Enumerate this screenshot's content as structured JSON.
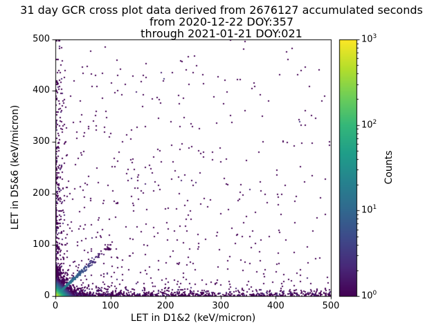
{
  "chart_data": {
    "type": "heatmap",
    "subtype": "2D histogram cross plot rendered as point cloud with log color scale",
    "title": "31 day GCR cross plot data derived from 2676127 accumulated seconds from 2020-12-22 DOY:357 through 2021-01-21 DOY:021",
    "title_lines": [
      "31 day GCR cross plot data derived from 2676127 accumulated seconds",
      "from 2020-12-22 DOY:357",
      "through 2021-01-21 DOY:021"
    ],
    "xlabel": "LET in D1&2 (keV/micron)",
    "ylabel": "LET in D5&6 (keV/micron)",
    "xlim": [
      0,
      500
    ],
    "ylim": [
      0,
      500
    ],
    "xticks": [
      0,
      100,
      200,
      300,
      400,
      500
    ],
    "yticks": [
      0,
      100,
      200,
      300,
      400,
      500
    ],
    "grid": false,
    "legend": "none",
    "colorbar": {
      "label": "Counts",
      "scale": "log",
      "range": [
        1,
        1000
      ],
      "position": "right",
      "ticks": [
        {
          "base": "10",
          "exp": "0"
        },
        {
          "base": "10",
          "exp": "1"
        },
        {
          "base": "10",
          "exp": "2"
        },
        {
          "base": "10",
          "exp": "3"
        }
      ],
      "colormap": "viridis",
      "colormap_stops": [
        "#440154",
        "#482878",
        "#3e4989",
        "#31688e",
        "#26828e",
        "#1f9e89",
        "#35b779",
        "#6ece58",
        "#b5de2b",
        "#fde725"
      ]
    },
    "distribution_summary": "Bright hot spot at the origin (counts approaching 10^3) decaying exponentially; a teal diagonal ridge y~x out to ~90 keV/micron; sparse single-count events hugging both axes out to 500; isolated single-count events scattered over the lower-left half of the plane with a few high outliers near (160,430), (310,420) and (305,375)",
    "render": {
      "seed": 20201222,
      "point_size": 2,
      "clusters": [
        {
          "type": "biexp",
          "n": 5200,
          "mean_x": 7,
          "mean_y": 7,
          "count_scale": 700,
          "count_falloff": 5.5
        },
        {
          "type": "diagonal",
          "n": 750,
          "t_mean": 22,
          "t_max": 95,
          "jitter": 0.12,
          "count_scale": 40,
          "count_falloff": 25
        },
        {
          "type": "xband",
          "n": 950,
          "x_pow": 2.2,
          "x_max": 500,
          "y_mean": 5,
          "extra_count_mean": 0.5
        },
        {
          "type": "yband",
          "n": 480,
          "y_pow": 2.2,
          "y_max": 430,
          "x_mean": 5,
          "extra_count_mean": 0.5
        },
        {
          "type": "field",
          "n": 750,
          "x_pow": 2.0,
          "y_pow": 2.4,
          "x_max": 500,
          "y_max": 500,
          "extra_count_mean": 0.3
        }
      ],
      "outliers": [
        [
          160,
          430
        ],
        [
          308,
          421
        ],
        [
          305,
          374
        ],
        [
          318,
          352
        ],
        [
          312,
          398
        ],
        [
          230,
          297
        ],
        [
          262,
          240
        ],
        [
          86,
          385
        ],
        [
          28,
          390
        ],
        [
          122,
          300
        ],
        [
          213,
          262
        ],
        [
          250,
          215
        ],
        [
          388,
          8
        ],
        [
          300,
          160
        ],
        [
          270,
          190
        ],
        [
          150,
          232
        ],
        [
          178,
          205
        ],
        [
          60,
          330
        ],
        [
          18,
          440
        ],
        [
          238,
          150
        ],
        [
          330,
          120
        ],
        [
          355,
          95
        ],
        [
          410,
          15
        ],
        [
          470,
          10
        ],
        [
          487,
          6
        ],
        [
          430,
          5
        ],
        [
          226,
          330
        ],
        [
          285,
          265
        ],
        [
          140,
          260
        ],
        [
          95,
          215
        ],
        [
          52,
          282
        ],
        [
          75,
          250
        ],
        [
          3,
          497
        ],
        [
          200,
          170
        ],
        [
          165,
          140
        ],
        [
          110,
          180
        ]
      ]
    }
  }
}
